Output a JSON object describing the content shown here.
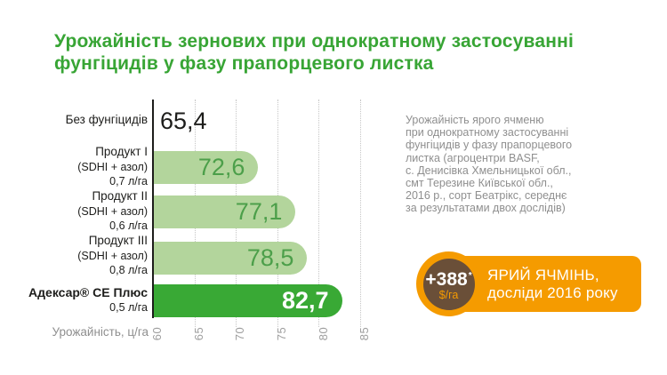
{
  "title": "Урожайність зернових при однократному застосуванні\nфунгіцидів у фазу прапорцевого листка",
  "chart_data": {
    "type": "bar",
    "orientation": "horizontal",
    "title": "Урожайність зернових при однократному застосуванні фунгіцидів у фазу прапорцевого листка",
    "xlabel": "Урожайність, ц/га",
    "xlim": [
      60,
      85
    ],
    "xticks": [
      "60",
      "65",
      "70",
      "75",
      "80",
      "85"
    ],
    "grid": "dotted-vertical",
    "categories": [
      "Без фунгіцидів",
      "Продукт I (SDHI + азол) 0,7 л/га",
      "Продукт II (SDHI + азол) 0,6 л/га",
      "Продукт III (SDHI + азол) 0,8 л/га",
      "Адексар® СЕ Плюс 0,5 л/га"
    ],
    "rows": [
      {
        "label_lines": [
          "Без фунгіцидів"
        ],
        "value": 65.4,
        "value_label": "65,4",
        "bar": false,
        "style": "none",
        "label_bold": false
      },
      {
        "label_lines": [
          "Продукт I",
          "(SDHI + азол)",
          "0,7 л/га"
        ],
        "value": 72.6,
        "value_label": "72,6",
        "bar": true,
        "style": "light",
        "label_bold": false
      },
      {
        "label_lines": [
          "Продукт II",
          "(SDHI + азол)",
          "0,6 л/га"
        ],
        "value": 77.1,
        "value_label": "77,1",
        "bar": true,
        "style": "light",
        "label_bold": false
      },
      {
        "label_lines": [
          "Продукт III",
          "(SDHI + азол)",
          "0,8 л/га"
        ],
        "value": 78.5,
        "value_label": "78,5",
        "bar": true,
        "style": "light",
        "label_bold": false
      },
      {
        "label_lines": [
          "Адексар® СЕ Плюс",
          "0,5 л/га"
        ],
        "value": 82.7,
        "value_label": "82,7",
        "bar": true,
        "style": "dark",
        "label_bold": true
      }
    ]
  },
  "note": "Урожайність ярого ячменю\nпри однократному застосуванні\nфунгіцидів у фазу прапорцевого\nлистка (агроцентри BASF,\nс. Денисівка Хмельницької обл.,\nсмт Терезине Київської обл.,\n2016 р., сорт Беатрікс, середнє\nза результатами двох дослідів)",
  "badge": {
    "circle_value": "+388",
    "circle_asterisk": "*",
    "circle_unit": "$/га",
    "text_line1": "ЯРИЙ ЯЧМІНЬ,",
    "text_line2": "досліди 2016 року"
  },
  "colors": {
    "title_green": "#38a535",
    "bar_light": "#b3d59c",
    "bar_dark": "#39a935",
    "value_green_text": "#4c9f4a",
    "value_dark_text": "#ffffff",
    "text_black": "#1d1d1b",
    "note_gray": "#8f8f8f",
    "tick_gray": "#9e9e9e",
    "grid_gray": "#c6c6c6",
    "badge_orange": "#f59b00",
    "badge_brown": "#6a4f38"
  }
}
